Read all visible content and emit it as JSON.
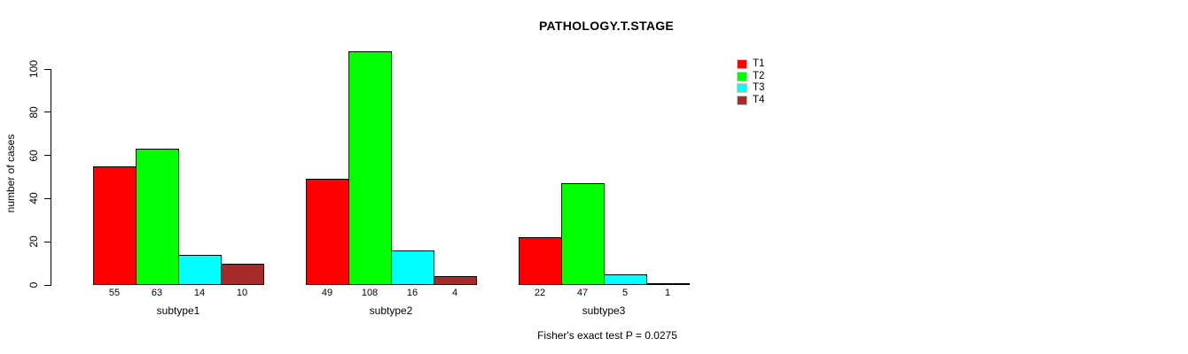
{
  "title": "PATHOLOGY.T.STAGE",
  "footer": "Fisher's exact test P = 0.0275",
  "colors": {
    "background": "#ffffff",
    "axis": "#000000",
    "bar_border": "#000000",
    "t1": "#ff0000",
    "t2": "#00ff00",
    "t3": "#00ffff",
    "t4": "#a52a2a"
  },
  "chart_data": {
    "type": "bar",
    "title": "PATHOLOGY.T.STAGE",
    "xlabel": "",
    "ylabel": "number of cases",
    "categories": [
      "subtype1",
      "subtype2",
      "subtype3"
    ],
    "series": [
      {
        "name": "T1",
        "color": "#ff0000",
        "values": [
          55,
          49,
          22
        ]
      },
      {
        "name": "T2",
        "color": "#00ff00",
        "values": [
          63,
          108,
          47
        ]
      },
      {
        "name": "T3",
        "color": "#00ffff",
        "values": [
          14,
          16,
          5
        ]
      },
      {
        "name": "T4",
        "color": "#a52a2a",
        "values": [
          10,
          4,
          1
        ]
      }
    ],
    "yticks": [
      0,
      20,
      40,
      60,
      80,
      100
    ],
    "ylim": [
      0,
      110
    ],
    "grid": false,
    "legend_position": "top-right",
    "bar_value_labels": true,
    "annotation": "Fisher's exact test P = 0.0275"
  }
}
